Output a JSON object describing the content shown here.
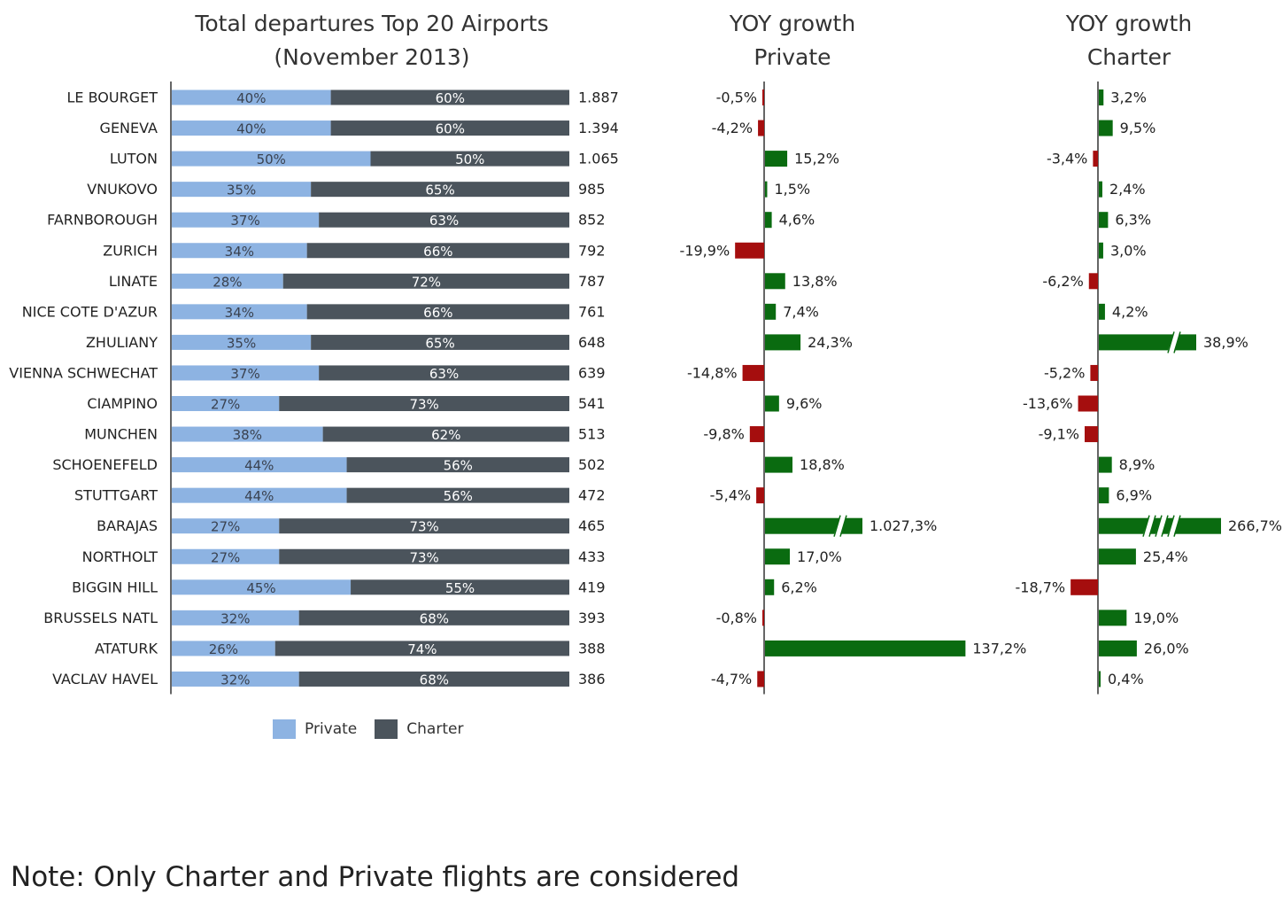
{
  "colors": {
    "private": "#8db3e2",
    "charter": "#4b545c",
    "positive": "#0a6b10",
    "negative": "#a50e0e",
    "axis": "#333333"
  },
  "chart_data": [
    {
      "type": "bar",
      "stacked": "percent",
      "orientation": "horizontal",
      "title": [
        "Total departures  Top 20 Airports",
        "(November  2013)"
      ],
      "categories": [
        "LE BOURGET",
        "GENEVA",
        "LUTON",
        "VNUKOVO",
        "FARNBOROUGH",
        "ZURICH",
        "LINATE",
        "NICE COTE D'AZUR",
        "ZHULIANY",
        "VIENNA SCHWECHAT",
        "CIAMPINO",
        "MUNCHEN",
        "SCHOENEFELD",
        "STUTTGART",
        "BARAJAS",
        "NORTHOLT",
        "BIGGIN HILL",
        "BRUSSELS NATL",
        "ATATURK",
        "VACLAV HAVEL"
      ],
      "series": [
        {
          "name": "Private",
          "values": [
            40,
            40,
            50,
            35,
            37,
            34,
            28,
            34,
            35,
            37,
            27,
            38,
            44,
            44,
            27,
            27,
            45,
            32,
            26,
            32
          ],
          "labels": [
            "40%",
            "40%",
            "50%",
            "35%",
            "37%",
            "34%",
            "28%",
            "34%",
            "35%",
            "37%",
            "27%",
            "38%",
            "44%",
            "44%",
            "27%",
            "27%",
            "45%",
            "32%",
            "26%",
            "32%"
          ]
        },
        {
          "name": "Charter",
          "values": [
            60,
            60,
            50,
            65,
            63,
            66,
            72,
            66,
            65,
            63,
            73,
            62,
            56,
            56,
            73,
            73,
            55,
            68,
            74,
            68
          ],
          "labels": [
            "60%",
            "60%",
            "50%",
            "65%",
            "63%",
            "66%",
            "72%",
            "66%",
            "65%",
            "63%",
            "73%",
            "62%",
            "56%",
            "56%",
            "73%",
            "73%",
            "55%",
            "68%",
            "74%",
            "68%"
          ]
        }
      ],
      "totals": [
        1887,
        1394,
        1065,
        985,
        852,
        792,
        787,
        761,
        648,
        639,
        541,
        513,
        502,
        472,
        465,
        433,
        419,
        393,
        388,
        386
      ],
      "total_labels": [
        "1.887",
        "1.394",
        "1.065",
        "985",
        "852",
        "792",
        "787",
        "761",
        "648",
        "639",
        "541",
        "513",
        "502",
        "472",
        "465",
        "433",
        "419",
        "393",
        "388",
        "386"
      ],
      "legend": "bottom"
    },
    {
      "type": "bar",
      "orientation": "horizontal",
      "title": [
        "YOY growth",
        "Private"
      ],
      "unit": "%",
      "values": [
        -0.5,
        -4.2,
        15.2,
        1.5,
        4.6,
        -19.9,
        13.8,
        7.4,
        24.3,
        -14.8,
        9.6,
        -9.8,
        18.8,
        -5.4,
        1027.3,
        17.0,
        6.2,
        -0.8,
        137.2,
        -4.7
      ],
      "labels": [
        "-0,5%",
        "-4,2%",
        "15,2%",
        "1,5%",
        "4,6%",
        "-19,9%",
        "13,8%",
        "7,4%",
        "24,3%",
        "-14,8%",
        "9,6%",
        "-9,8%",
        "18,8%",
        "-5,4%",
        "1.027,3%",
        "17,0%",
        "6,2%",
        "-0,8%",
        "137,2%",
        "-4,7%"
      ],
      "axis_breaks": {
        "14": 1
      }
    },
    {
      "type": "bar",
      "orientation": "horizontal",
      "title": [
        "YOY growth",
        "Charter"
      ],
      "unit": "%",
      "values": [
        3.2,
        9.5,
        -3.4,
        2.4,
        6.3,
        3.0,
        -6.2,
        4.2,
        38.9,
        -5.2,
        -13.6,
        -9.1,
        8.9,
        6.9,
        266.7,
        25.4,
        -18.7,
        19.0,
        26.0,
        0.4
      ],
      "labels": [
        "3,2%",
        "9,5%",
        "-3,4%",
        "2,4%",
        "6,3%",
        "3,0%",
        "-6,2%",
        "4,2%",
        "38,9%",
        "-5,2%",
        "-13,6%",
        "-9,1%",
        "8,9%",
        "6,9%",
        "266,7%",
        "25,4%",
        "-18,7%",
        "19,0%",
        "26,0%",
        "0,4%"
      ],
      "axis_breaks": {
        "8": 1,
        "14": 3
      }
    }
  ],
  "note": "Note: Only Charter and Private flights are considered"
}
